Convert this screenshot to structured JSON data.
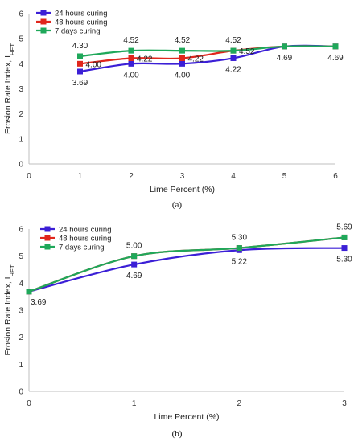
{
  "chart_data": [
    {
      "type": "line",
      "panel_label": "(a)",
      "xlabel": "Lime Percent (%)",
      "ylabel_main": "Erosion Rate Index, I",
      "ylabel_sub": "HET",
      "xlim": [
        0,
        6
      ],
      "ylim": [
        0,
        6
      ],
      "xticks": [
        "0",
        "1",
        "2",
        "3",
        "4",
        "5",
        "6"
      ],
      "yticks": [
        "0",
        "1",
        "2",
        "3",
        "4",
        "5",
        "6"
      ],
      "legend": "top-left",
      "grid": false,
      "series": [
        {
          "name": "24 hours curing",
          "color": "#3b1fd6",
          "x": [
            1,
            2,
            3,
            4,
            5,
            6
          ],
          "y": [
            3.69,
            4.0,
            4.0,
            4.22,
            4.69,
            4.69
          ]
        },
        {
          "name": "48 hours curing",
          "color": "#e0261c",
          "x": [
            1,
            2,
            3,
            4,
            5,
            6
          ],
          "y": [
            4.0,
            4.22,
            4.22,
            4.52,
            4.69,
            4.69
          ]
        },
        {
          "name": "7 days curing",
          "color": "#1fa85a",
          "x": [
            1,
            2,
            3,
            4,
            5,
            6
          ],
          "y": [
            4.3,
            4.52,
            4.52,
            4.52,
            4.69,
            4.69
          ]
        }
      ],
      "data_labels": [
        {
          "text": "4.30",
          "x": 1,
          "y": 4.3,
          "pos": "above"
        },
        {
          "text": "4.00",
          "x": 1,
          "y": 4.0,
          "pos": "right"
        },
        {
          "text": "3.69",
          "x": 1,
          "y": 3.69,
          "pos": "below"
        },
        {
          "text": "4.52",
          "x": 2,
          "y": 4.52,
          "pos": "above"
        },
        {
          "text": "4.22",
          "x": 2,
          "y": 4.22,
          "pos": "right"
        },
        {
          "text": "4.00",
          "x": 2,
          "y": 4.0,
          "pos": "below"
        },
        {
          "text": "4.52",
          "x": 3,
          "y": 4.52,
          "pos": "above"
        },
        {
          "text": "4.22",
          "x": 3,
          "y": 4.22,
          "pos": "right"
        },
        {
          "text": "4.00",
          "x": 3,
          "y": 4.0,
          "pos": "below"
        },
        {
          "text": "4.52",
          "x": 4,
          "y": 4.52,
          "pos": "above"
        },
        {
          "text": "4.52",
          "x": 4,
          "y": 4.52,
          "pos": "right"
        },
        {
          "text": "4.22",
          "x": 4,
          "y": 4.22,
          "pos": "below"
        },
        {
          "text": "4.69",
          "x": 5,
          "y": 4.69,
          "pos": "below"
        },
        {
          "text": "4.69",
          "x": 6,
          "y": 4.69,
          "pos": "below"
        }
      ]
    },
    {
      "type": "line",
      "panel_label": "(b)",
      "xlabel": "Lime Percent (%)",
      "ylabel_main": "Erosion Rate Index, I",
      "ylabel_sub": "HET",
      "xlim": [
        0,
        3
      ],
      "ylim": [
        0,
        6
      ],
      "xticks": [
        "0",
        "1",
        "2",
        "3"
      ],
      "yticks": [
        "0",
        "1",
        "2",
        "3",
        "4",
        "5",
        "6"
      ],
      "legend": "top-left",
      "grid": false,
      "series": [
        {
          "name": "24 hours curing",
          "color": "#3b1fd6",
          "x": [
            0,
            1,
            2,
            3
          ],
          "y": [
            3.69,
            4.69,
            5.22,
            5.3
          ]
        },
        {
          "name": "48 hours curing",
          "color": "#e0261c",
          "x": [
            0,
            1,
            2,
            3
          ],
          "y": [
            3.69,
            5.0,
            5.3,
            5.69
          ]
        },
        {
          "name": "7 days curing",
          "color": "#1fa85a",
          "x": [
            0,
            1,
            2,
            3
          ],
          "y": [
            3.69,
            5.0,
            5.3,
            5.69
          ]
        }
      ],
      "data_labels": [
        {
          "text": "3.69",
          "x": 0,
          "y": 3.69,
          "pos": "below-right"
        },
        {
          "text": "5.00",
          "x": 1,
          "y": 5.0,
          "pos": "above"
        },
        {
          "text": "4.69",
          "x": 1,
          "y": 4.69,
          "pos": "below"
        },
        {
          "text": "5.30",
          "x": 2,
          "y": 5.3,
          "pos": "above"
        },
        {
          "text": "5.22",
          "x": 2,
          "y": 5.22,
          "pos": "below"
        },
        {
          "text": "5.69",
          "x": 3,
          "y": 5.69,
          "pos": "above"
        },
        {
          "text": "5.30",
          "x": 3,
          "y": 5.3,
          "pos": "below"
        }
      ]
    }
  ]
}
